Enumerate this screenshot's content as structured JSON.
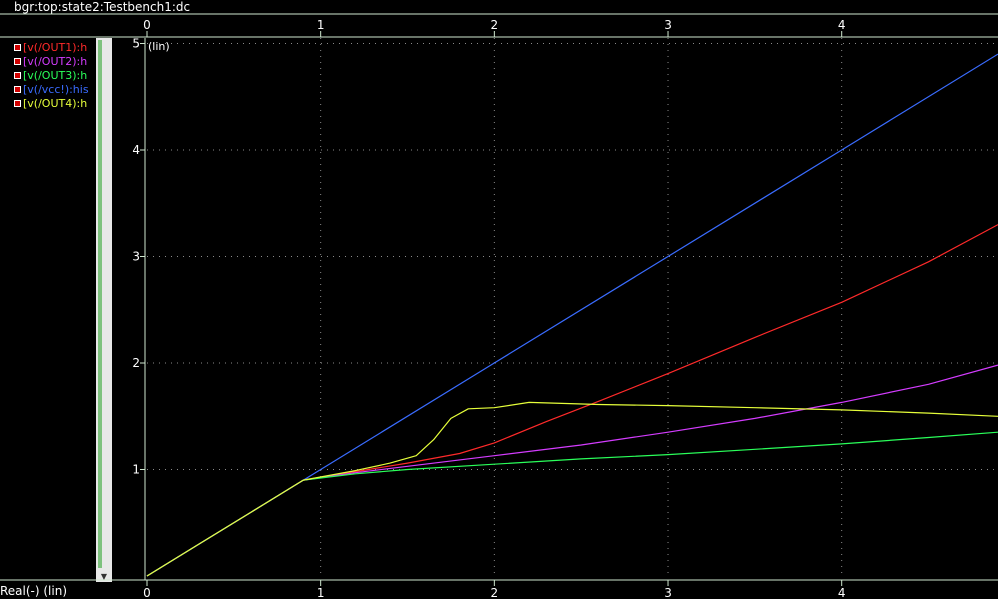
{
  "window": {
    "title": "bgr:top:state2:Testbench1:dc"
  },
  "legend": {
    "items": [
      {
        "label": "[v(/OUT1):h",
        "color": "#ff2a2a"
      },
      {
        "label": "[v(/OUT2):h",
        "color": "#d43cff"
      },
      {
        "label": "[v(/OUT3):h",
        "color": "#2aff5a"
      },
      {
        "label": "[v(/vcc!):his",
        "color": "#3a6cff"
      },
      {
        "label": "[v(/OUT4):h",
        "color": "#e6ff3a"
      }
    ]
  },
  "chart_data": {
    "type": "line",
    "xlabel": "Real(-) (lin)",
    "ylabel": "(lin)",
    "xlim": [
      0,
      4.9
    ],
    "ylim": [
      0,
      5.05
    ],
    "xticks": [
      "0",
      "1",
      "2",
      "3",
      "4"
    ],
    "yticks": [
      "1",
      "2",
      "3",
      "4",
      "5"
    ],
    "grid": true,
    "series": [
      {
        "name": "v(/OUT1)",
        "color": "#ff2a2a",
        "x": [
          0,
          0.3,
          0.6,
          0.9,
          1.2,
          1.5,
          1.8,
          2.0,
          2.3,
          2.6,
          3.0,
          3.5,
          4.0,
          4.5,
          4.9
        ],
        "y": [
          0,
          0.3,
          0.6,
          0.9,
          0.98,
          1.06,
          1.15,
          1.25,
          1.45,
          1.64,
          1.9,
          2.24,
          2.57,
          2.95,
          3.3
        ]
      },
      {
        "name": "v(/OUT2)",
        "color": "#d43cff",
        "x": [
          0,
          0.3,
          0.6,
          0.9,
          1.2,
          1.5,
          2.0,
          2.5,
          3.0,
          3.5,
          4.0,
          4.5,
          4.9
        ],
        "y": [
          0,
          0.3,
          0.6,
          0.9,
          0.97,
          1.03,
          1.13,
          1.23,
          1.35,
          1.48,
          1.63,
          1.8,
          1.98
        ]
      },
      {
        "name": "v(/OUT3)",
        "color": "#2aff5a",
        "x": [
          0,
          0.3,
          0.6,
          0.9,
          1.2,
          1.5,
          2.0,
          2.5,
          3.0,
          3.5,
          4.0,
          4.5,
          4.9
        ],
        "y": [
          0,
          0.3,
          0.6,
          0.9,
          0.96,
          1.0,
          1.05,
          1.1,
          1.14,
          1.19,
          1.24,
          1.3,
          1.35
        ]
      },
      {
        "name": "v(/vcc!)",
        "color": "#3a6cff",
        "x": [
          0,
          1,
          2,
          3,
          4,
          4.9
        ],
        "y": [
          0,
          1,
          2,
          3,
          4,
          4.9
        ]
      },
      {
        "name": "v(/OUT4)",
        "color": "#e6ff3a",
        "x": [
          0,
          0.3,
          0.6,
          0.9,
          1.2,
          1.4,
          1.55,
          1.65,
          1.75,
          1.85,
          2.0,
          2.2,
          2.6,
          3.0,
          3.5,
          4.0,
          4.5,
          4.9
        ],
        "y": [
          0,
          0.3,
          0.6,
          0.9,
          0.99,
          1.06,
          1.13,
          1.28,
          1.48,
          1.57,
          1.58,
          1.63,
          1.61,
          1.6,
          1.58,
          1.56,
          1.53,
          1.5
        ]
      }
    ]
  }
}
